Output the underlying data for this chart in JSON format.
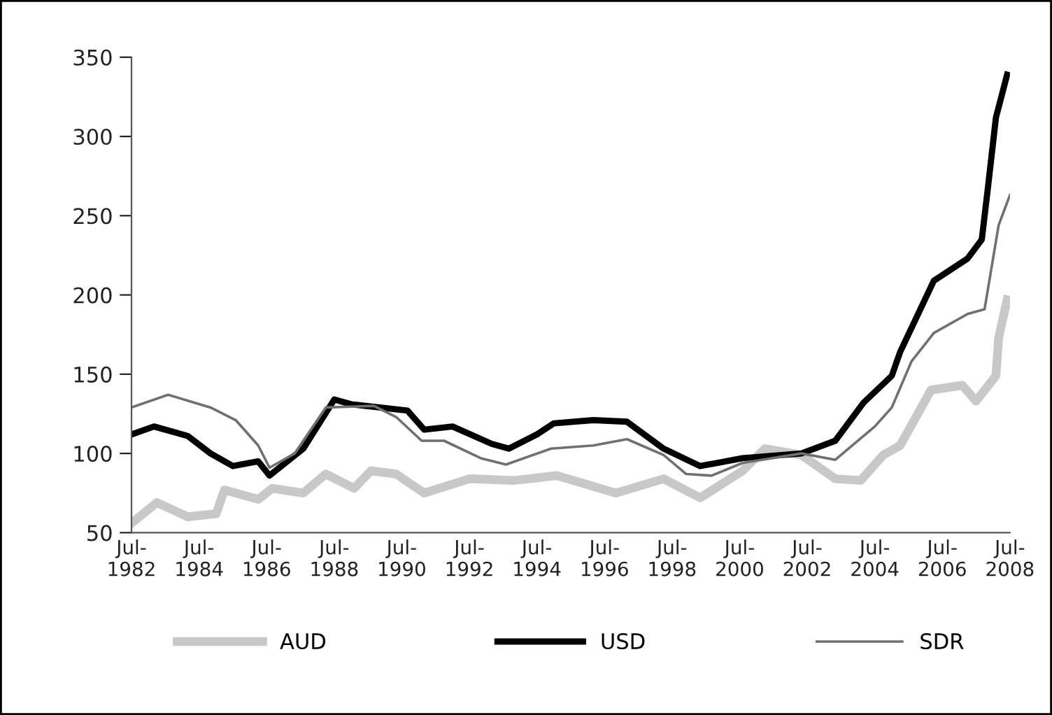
{
  "chart_data": {
    "type": "line",
    "xlim": [
      "1982-07",
      "2008-07"
    ],
    "xticks": [
      {
        "value": "1982-07",
        "label": "Jul-\n1982"
      },
      {
        "value": "1984-07",
        "label": "Jul-\n1984"
      },
      {
        "value": "1986-07",
        "label": "Jul-\n1986"
      },
      {
        "value": "1988-07",
        "label": "Jul-\n1988"
      },
      {
        "value": "1990-07",
        "label": "Jul-\n1990"
      },
      {
        "value": "1992-07",
        "label": "Jul-\n1992"
      },
      {
        "value": "1994-07",
        "label": "Jul-\n1994"
      },
      {
        "value": "1996-07",
        "label": "Jul-\n1996"
      },
      {
        "value": "1998-07",
        "label": "Jul-\n1998"
      },
      {
        "value": "2000-07",
        "label": "Jul-\n2000"
      },
      {
        "value": "2002-07",
        "label": "Jul-\n2002"
      },
      {
        "value": "2004-07",
        "label": "Jul-\n2004"
      },
      {
        "value": "2006-07",
        "label": "Jul-\n2006"
      },
      {
        "value": "2008-07",
        "label": "Jul-\n2008"
      }
    ],
    "ylim": [
      50,
      350
    ],
    "yticks": [
      50,
      100,
      150,
      200,
      250,
      300,
      350
    ],
    "grid": false,
    "legend": "bottom",
    "marker": "none",
    "line_style": "solid",
    "series": [
      {
        "name": "AUD",
        "color": "#c8c8c8",
        "x": [
          "1982-07",
          "1983-04",
          "1984-03",
          "1985-01",
          "1985-04",
          "1986-04",
          "1986-09",
          "1987-08",
          "1988-04",
          "1989-02",
          "1989-08",
          "1990-05",
          "1991-03",
          "1992-07",
          "1993-11",
          "1995-02",
          "1996-11",
          "1998-04",
          "1999-05",
          "2000-08",
          "2001-04",
          "2002-05",
          "2003-05",
          "2004-02",
          "2004-10",
          "2005-04",
          "2006-03",
          "2007-02",
          "2007-07",
          "2008-02",
          "2008-03",
          "2008-06"
        ],
        "values": [
          56,
          69,
          60,
          62,
          77,
          71,
          78,
          75,
          87,
          78,
          89,
          87,
          75,
          84,
          83,
          86,
          75,
          84,
          72,
          89,
          103,
          99,
          84,
          83,
          99,
          105,
          140,
          143,
          133,
          149,
          173,
          197
        ]
      },
      {
        "name": "USD",
        "color": "#000000",
        "x": [
          "1982-07",
          "1983-03",
          "1984-03",
          "1984-11",
          "1985-07",
          "1986-04",
          "1986-08",
          "1987-08",
          "1988-07",
          "1989-01",
          "1990-09",
          "1991-03",
          "1992-01",
          "1993-03",
          "1993-09",
          "1994-07",
          "1995-01",
          "1996-03",
          "1997-03",
          "1998-04",
          "1999-05",
          "2000-08",
          "2002-05",
          "2003-05",
          "2004-03",
          "2005-01",
          "2005-04",
          "2006-04",
          "2007-04",
          "2007-09",
          "2007-11",
          "2008-02",
          "2008-06"
        ],
        "values": [
          112,
          117,
          111,
          100,
          92,
          95,
          86,
          103,
          134,
          131,
          127,
          115,
          117,
          106,
          103,
          112,
          119,
          121,
          120,
          103,
          92,
          97,
          100,
          108,
          132,
          149,
          164,
          209,
          223,
          235,
          265,
          312,
          339
        ]
      },
      {
        "name": "SDR",
        "color": "#707070",
        "x": [
          "1982-07",
          "1983-08",
          "1984-11",
          "1985-08",
          "1986-04",
          "1986-08",
          "1987-05",
          "1988-04",
          "1989-09",
          "1990-05",
          "1991-02",
          "1991-10",
          "1992-11",
          "1993-08",
          "1994-12",
          "1996-03",
          "1997-03",
          "1998-04",
          "1998-12",
          "1999-09",
          "2000-08",
          "2002-05",
          "2003-05",
          "2004-07",
          "2005-01",
          "2005-08",
          "2006-04",
          "2007-04",
          "2007-10",
          "2008-03",
          "2008-07"
        ],
        "values": [
          129,
          137,
          129,
          121,
          105,
          91,
          100,
          129,
          130,
          123,
          108,
          108,
          97,
          93,
          103,
          105,
          109,
          99,
          87,
          86,
          94,
          100,
          96,
          117,
          129,
          158,
          176,
          188,
          191,
          244,
          263
        ]
      }
    ]
  }
}
